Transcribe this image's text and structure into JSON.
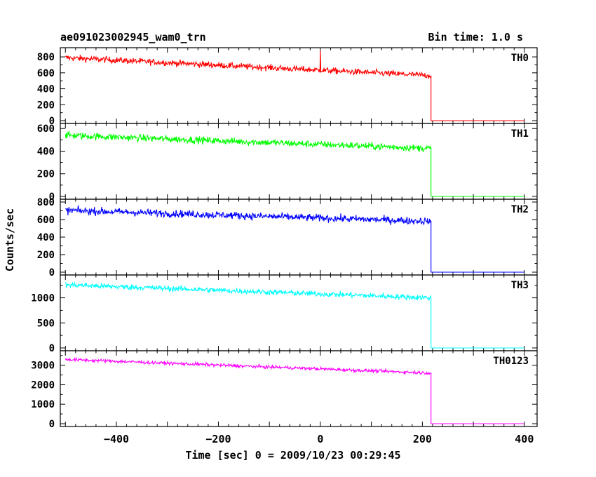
{
  "header": {
    "title": "ae091023002945_wam0_trn",
    "bin_time": "Bin time: 1.0 s"
  },
  "chart_data": {
    "type": "line",
    "title": "ae091023002945_wam0_trn",
    "subtitle": "Bin time: 1.0 s",
    "xlabel": "Time [sec] 0 = 2009/10/23 00:29:45",
    "ylabel": "Counts/sec",
    "xlim": [
      -510,
      425
    ],
    "xticks": [
      -400,
      -200,
      0,
      200,
      400
    ],
    "xticklabels": [
      "−400",
      "−200",
      "0",
      "200",
      "400"
    ],
    "data_start": -500,
    "drop_time": 217,
    "data_end": 400,
    "grid": false,
    "panels": [
      {
        "name": "TH0",
        "color": "#ff0000",
        "ylim": [
          0,
          880
        ],
        "yticks": [
          0,
          200,
          400,
          600,
          800
        ],
        "start_value": 790,
        "end_value": 565,
        "noise": 28,
        "after_drop": 0,
        "spike": {
          "x": 0,
          "y": 880
        }
      },
      {
        "name": "TH1",
        "color": "#00ff00",
        "ylim": [
          0,
          620
        ],
        "yticks": [
          0,
          200,
          400,
          600
        ],
        "start_value": 540,
        "end_value": 425,
        "noise": 22,
        "after_drop": 0
      },
      {
        "name": "TH2",
        "color": "#0000ff",
        "ylim": [
          0,
          800
        ],
        "yticks": [
          0,
          200,
          400,
          600,
          800
        ],
        "start_value": 705,
        "end_value": 580,
        "noise": 30,
        "after_drop": 0
      },
      {
        "name": "TH3",
        "color": "#00ffff",
        "ylim": [
          0,
          1400
        ],
        "yticks": [
          0,
          500,
          1000
        ],
        "start_value": 1260,
        "end_value": 1000,
        "noise": 40,
        "after_drop": 0
      },
      {
        "name": "TH0123",
        "color": "#ff00ff",
        "ylim": [
          0,
          3600
        ],
        "yticks": [
          0,
          1000,
          2000,
          3000
        ],
        "start_value": 3300,
        "end_value": 2600,
        "noise": 60,
        "after_drop": 0
      }
    ]
  }
}
